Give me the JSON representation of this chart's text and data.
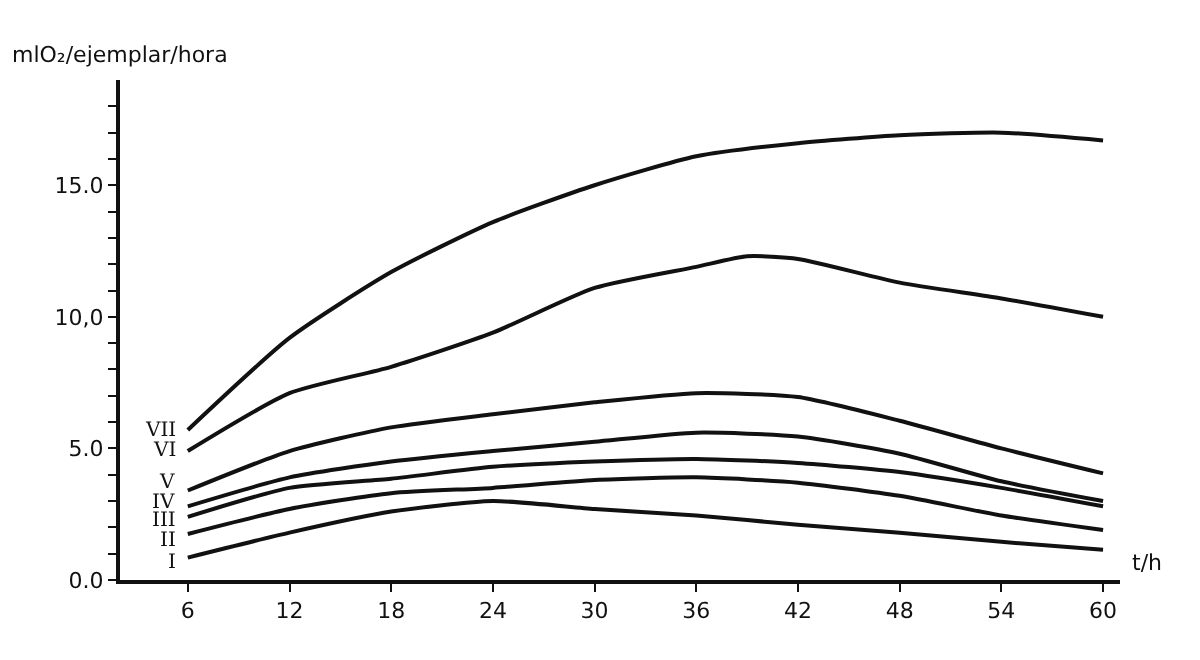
{
  "chart_data": {
    "type": "line",
    "ylabel": "mlO₂/ejemplar/hora",
    "xlabel": "t/h",
    "x": [
      6,
      12,
      18,
      24,
      30,
      36,
      42,
      48,
      54,
      60
    ],
    "series": [
      {
        "name": "VII",
        "color": "#111111",
        "values": [
          5.7,
          9.2,
          11.7,
          13.6,
          15.0,
          16.1,
          16.6,
          16.9,
          17.0,
          16.7
        ]
      },
      {
        "name": "VI",
        "color": "#111111",
        "x": [
          6,
          12,
          18,
          24,
          30,
          36,
          39,
          42,
          48,
          54,
          60
        ],
        "values": [
          4.9,
          7.1,
          8.1,
          9.4,
          11.1,
          11.9,
          12.3,
          12.2,
          11.3,
          10.7,
          10.0
        ]
      },
      {
        "name": "V",
        "color": "#111111",
        "values": [
          3.4,
          4.9,
          5.8,
          6.3,
          6.75,
          7.1,
          6.95,
          6.05,
          5.0,
          4.05
        ]
      },
      {
        "name": "IV",
        "color": "#111111",
        "values": [
          2.8,
          3.9,
          4.5,
          4.9,
          5.25,
          5.6,
          5.45,
          4.8,
          3.75,
          3.0
        ]
      },
      {
        "name": "III",
        "color": "#111111",
        "values": [
          2.4,
          3.5,
          3.85,
          4.3,
          4.5,
          4.6,
          4.45,
          4.1,
          3.5,
          2.8
        ]
      },
      {
        "name": "II",
        "color": "#111111",
        "values": [
          1.75,
          2.7,
          3.3,
          3.5,
          3.8,
          3.9,
          3.7,
          3.2,
          2.45,
          1.9
        ]
      },
      {
        "name": "I",
        "color": "#111111",
        "values": [
          0.85,
          1.8,
          2.6,
          3.0,
          2.7,
          2.45,
          2.1,
          1.8,
          1.45,
          1.15
        ]
      }
    ],
    "xlim": [
      2,
      61
    ],
    "ylim": [
      0,
      19
    ],
    "xticks": [
      6,
      12,
      18,
      24,
      30,
      36,
      42,
      48,
      54,
      60
    ],
    "yticks": [
      {
        "value": 0,
        "label": "0.0"
      },
      {
        "value": 1,
        "label": null
      },
      {
        "value": 2,
        "label": null
      },
      {
        "value": 3,
        "label": null
      },
      {
        "value": 4,
        "label": null
      },
      {
        "value": 5,
        "label": "5.0"
      },
      {
        "value": 6,
        "label": null
      },
      {
        "value": 7,
        "label": null
      },
      {
        "value": 8,
        "label": null
      },
      {
        "value": 9,
        "label": null
      },
      {
        "value": 10,
        "label": "10,0"
      },
      {
        "value": 11,
        "label": null
      },
      {
        "value": 12,
        "label": null
      },
      {
        "value": 13,
        "label": null
      },
      {
        "value": 14,
        "label": null
      },
      {
        "value": 15,
        "label": "15.0"
      },
      {
        "value": 16,
        "label": null
      },
      {
        "value": 17,
        "label": null
      },
      {
        "value": 18,
        "label": null
      }
    ],
    "legend": false,
    "marker": "none",
    "line_style": "solid"
  }
}
